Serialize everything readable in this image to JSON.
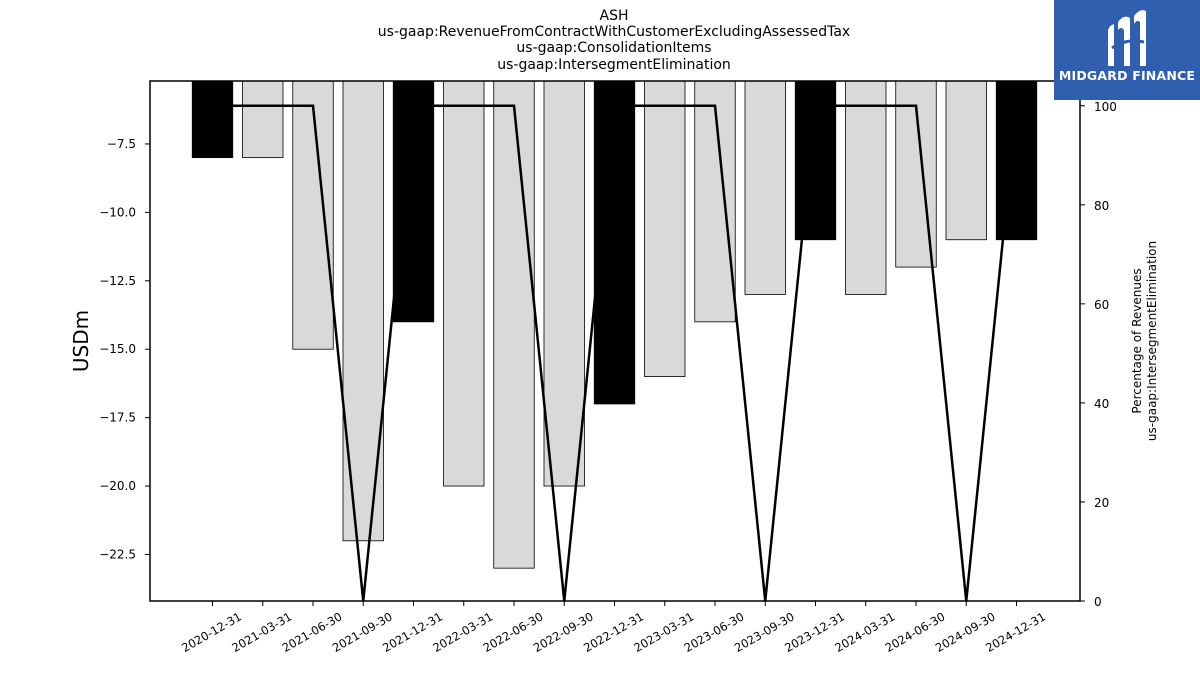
{
  "chart_data": {
    "type": "bar",
    "title_lines": [
      "ASH",
      "us-gaap:RevenueFromContractWithCustomerExcludingAssessedTax",
      "us-gaap:ConsolidationItems",
      "us-gaap:IntersegmentElimination"
    ],
    "categories": [
      "2020-12-31",
      "2021-03-31",
      "2021-06-30",
      "2021-09-30",
      "2021-12-31",
      "2022-03-31",
      "2022-06-30",
      "2022-09-30",
      "2022-12-31",
      "2023-03-31",
      "2023-06-30",
      "2023-09-30",
      "2023-12-31",
      "2024-03-31",
      "2024-06-30",
      "2024-09-30",
      "2024-12-31"
    ],
    "values": [
      -8,
      -8,
      -15,
      -22,
      -14,
      -20,
      -23,
      -20,
      -17,
      -16,
      -14,
      -13,
      -11,
      -13,
      -12,
      -11,
      -11
    ],
    "highlight": [
      true,
      false,
      false,
      false,
      true,
      false,
      false,
      false,
      true,
      false,
      false,
      false,
      true,
      false,
      false,
      false,
      true
    ],
    "percentage_line": [
      100,
      100,
      100,
      0,
      100,
      100,
      100,
      0,
      100,
      100,
      100,
      0,
      100,
      100,
      100,
      0,
      100
    ],
    "ylabel": "USDm",
    "ylabel_right_lines": [
      "Percentage of Revenues",
      "us-gaap:IntersegmentElimination"
    ],
    "ylim": [
      -24.2,
      -5.2
    ],
    "ylim_right": [
      0,
      105
    ],
    "yticks": [
      -7.5,
      -10.0,
      -12.5,
      -15.0,
      -17.5,
      -20.0,
      -22.5
    ],
    "yticks_right": [
      0,
      20,
      40,
      60,
      80,
      100
    ],
    "colors": {
      "highlight": "#000000",
      "normal": "#d9d9d9",
      "line": "#000000"
    },
    "grid": false
  },
  "logo": {
    "text": "MIDGARD FINANCE",
    "color": "#2f5fae"
  }
}
